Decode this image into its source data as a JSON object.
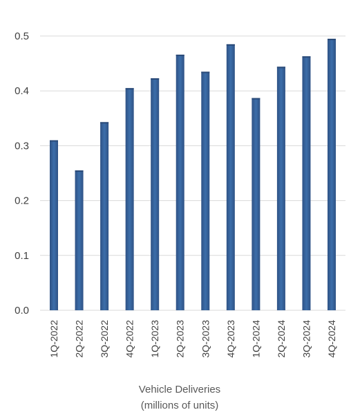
{
  "chart_data": {
    "type": "bar",
    "categories": [
      "1Q-2022",
      "2Q-2022",
      "3Q-2022",
      "4Q-2022",
      "1Q-2023",
      "2Q-2023",
      "3Q-2023",
      "4Q-2023",
      "1Q-2024",
      "2Q-2024",
      "3Q-2024",
      "4Q-2024"
    ],
    "values": [
      0.31,
      0.255,
      0.343,
      0.405,
      0.423,
      0.466,
      0.435,
      0.485,
      0.387,
      0.444,
      0.463,
      0.495
    ],
    "title": "",
    "xlabel_lines": [
      "Vehicle Deliveries",
      "(millions of units)"
    ],
    "ylabel": "",
    "ylim": [
      0,
      0.5
    ],
    "yticks": [
      "0.0",
      "0.1",
      "0.2",
      "0.3",
      "0.4",
      "0.5"
    ],
    "grid": true,
    "legend": "none",
    "colors": {
      "bar_edge": "#2f5285",
      "bar_center": "#3c6eaa",
      "grid": "#d9d9d9",
      "text": "#404040"
    }
  }
}
